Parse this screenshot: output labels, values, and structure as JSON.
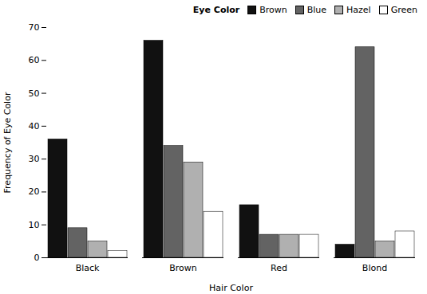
{
  "chart_data": {
    "type": "bar",
    "xlabel": "Hair Color",
    "ylabel": "Frequency of Eye Color",
    "legend_title": "Eye Color",
    "legend": "upper right",
    "categories": [
      "Black",
      "Brown",
      "Red",
      "Blond"
    ],
    "series": [
      {
        "name": "Brown",
        "color": "#111111",
        "values": [
          36,
          66,
          16,
          4
        ]
      },
      {
        "name": "Blue",
        "color": "#636363",
        "values": [
          9,
          34,
          7,
          64
        ]
      },
      {
        "name": "Hazel",
        "color": "#b0b0b0",
        "values": [
          5,
          29,
          7,
          5
        ]
      },
      {
        "name": "Green",
        "color": "#ffffff",
        "values": [
          2,
          14,
          7,
          8
        ]
      }
    ],
    "ylim": [
      0,
      70
    ],
    "yticks": [
      0,
      10,
      20,
      30,
      40,
      50,
      60,
      70
    ],
    "grid": false
  }
}
